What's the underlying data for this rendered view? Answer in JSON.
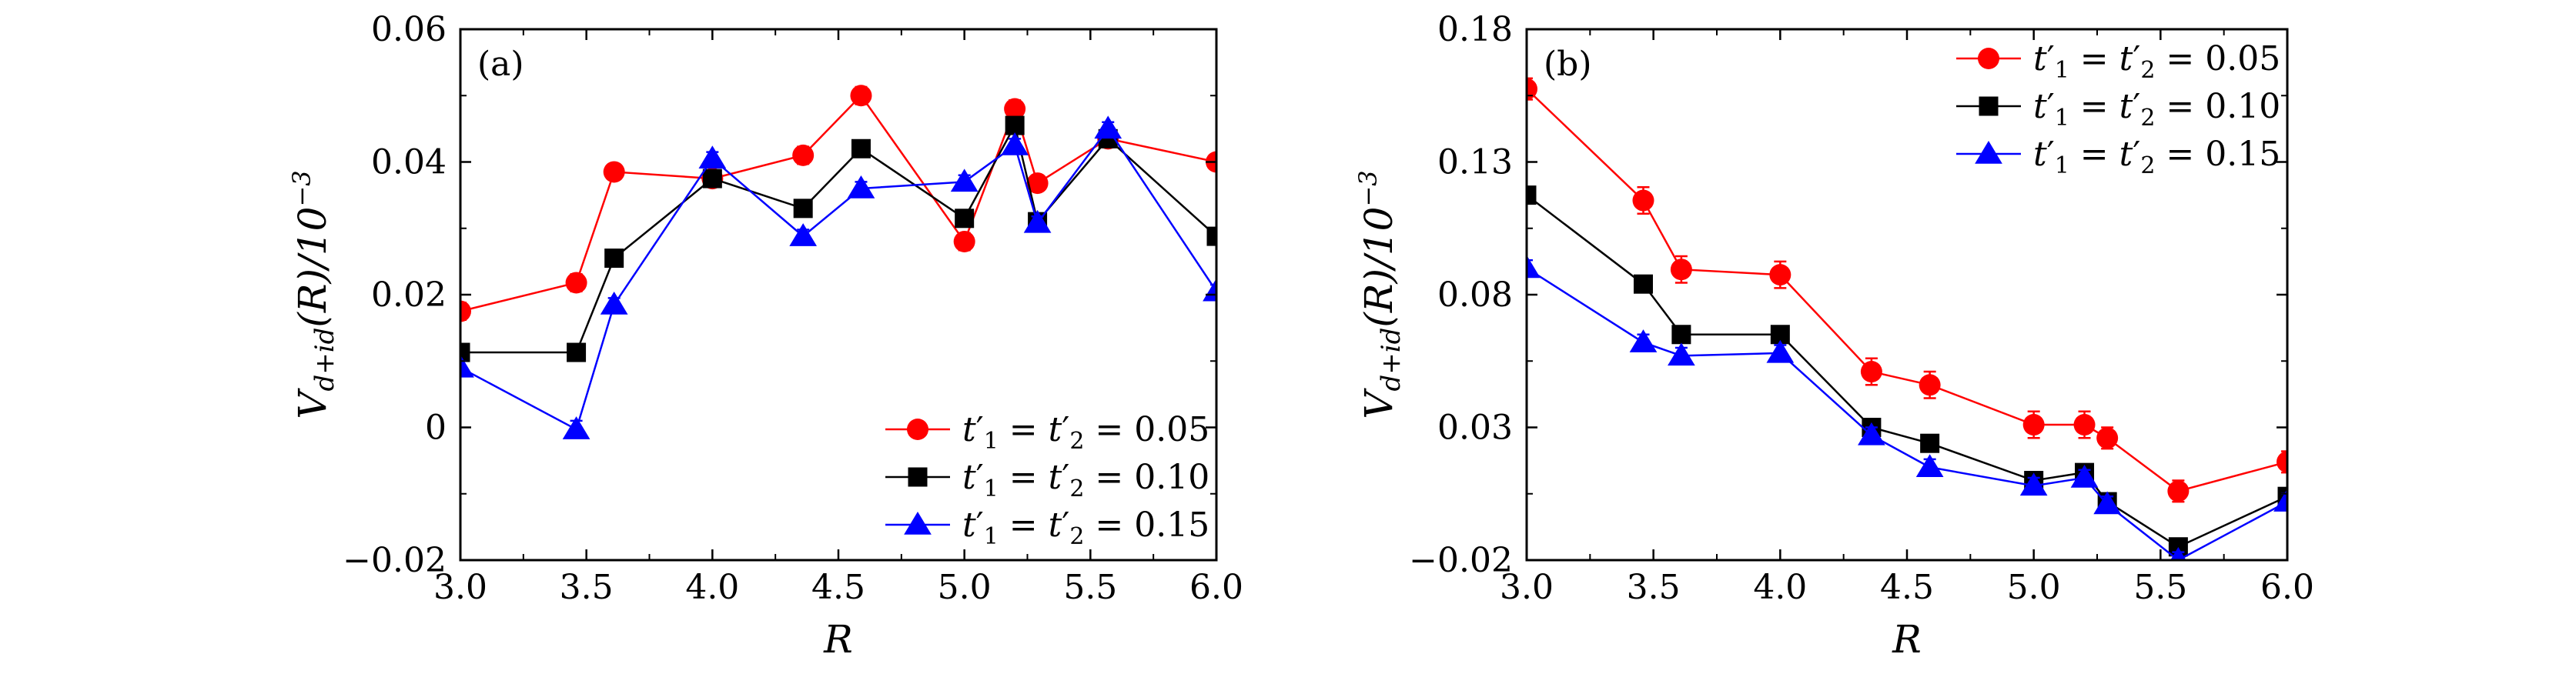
{
  "chart_data": [
    {
      "type": "line",
      "panel_label": "(a)",
      "xlabel": "R",
      "ylabel": "V_{d+id}(R)/10^{-3}",
      "ylabel_main": "V",
      "ylabel_sub": "d+id",
      "ylabel_mid": "(R)/10",
      "ylabel_sup": "−3",
      "xlim": [
        3.0,
        6.0
      ],
      "ylim": [
        -0.02,
        0.06
      ],
      "xticks": [
        3.0,
        3.5,
        4.0,
        4.5,
        5.0,
        5.5,
        6.0
      ],
      "xtick_labels": [
        "3.0",
        "3.5",
        "4.0",
        "4.5",
        "5.0",
        "5.5",
        "6.0"
      ],
      "yticks": [
        -0.02,
        0,
        0.02,
        0.04,
        0.06
      ],
      "ytick_labels": [
        "−0.02",
        "0",
        "0.02",
        "0.04",
        "0.06"
      ],
      "legend_position": "bottom-right",
      "x": [
        3.0,
        3.46,
        3.61,
        4.0,
        4.36,
        4.59,
        5.0,
        5.2,
        5.29,
        5.57,
        6.0
      ],
      "series": [
        {
          "name": "t'1 = t'2 = 0.05",
          "legend_lhs": "t",
          "legend_value": "0.05",
          "color": "#ff0000",
          "marker": "circle",
          "values": [
            0.0175,
            0.0218,
            0.0385,
            0.0375,
            0.041,
            0.05,
            0.028,
            0.048,
            0.0368,
            0.0435,
            0.04
          ],
          "errors": [
            0.0013,
            0.0013,
            0.001,
            0.001,
            0.0013,
            0.0013,
            0.0013,
            0.0013,
            0.001,
            0.0013,
            0.001
          ]
        },
        {
          "name": "t'1 = t'2 = 0.10",
          "legend_lhs": "t",
          "legend_value": "0.10",
          "color": "#000000",
          "marker": "square",
          "values": [
            0.0113,
            0.0113,
            0.0255,
            0.0375,
            0.033,
            0.042,
            0.0315,
            0.0455,
            0.031,
            0.0435,
            0.0288
          ],
          "errors": [
            0.001,
            0.001,
            0.001,
            0.001,
            0.001,
            0.001,
            0.001,
            0.001,
            0.001,
            0.001,
            0.001
          ]
        },
        {
          "name": "t'1 = t'2 = 0.15",
          "legend_lhs": "t",
          "legend_value": "0.15",
          "color": "#0000ff",
          "marker": "triangle",
          "values": [
            0.009,
            -0.0003,
            0.0185,
            0.0405,
            0.0288,
            0.036,
            0.037,
            0.0425,
            0.0308,
            0.045,
            0.0205
          ],
          "errors": [
            0.001,
            0.0013,
            0.001,
            0.001,
            0.001,
            0.001,
            0.001,
            0.001,
            0.001,
            0.001,
            0.001
          ]
        }
      ]
    },
    {
      "type": "line",
      "panel_label": "(b)",
      "xlabel": "R",
      "ylabel": "V_{d+id}(R)/10^{-3}",
      "ylabel_main": "V",
      "ylabel_sub": "d+id",
      "ylabel_mid": "(R)/10",
      "ylabel_sup": "−3",
      "xlim": [
        3.0,
        6.0
      ],
      "ylim": [
        -0.02,
        0.18
      ],
      "xticks": [
        3.0,
        3.5,
        4.0,
        4.5,
        5.0,
        5.5,
        6.0
      ],
      "xtick_labels": [
        "3.0",
        "3.5",
        "4.0",
        "4.5",
        "5.0",
        "5.5",
        "6.0"
      ],
      "yticks": [
        -0.02,
        0.03,
        0.08,
        0.13,
        0.18
      ],
      "ytick_labels": [
        "−0.02",
        "0.03",
        "0.08",
        "0.13",
        "0.18"
      ],
      "legend_position": "top-right",
      "x": [
        3.0,
        3.46,
        3.61,
        4.0,
        4.36,
        4.59,
        5.0,
        5.2,
        5.29,
        5.57,
        6.0
      ],
      "series": [
        {
          "name": "t'1 = t'2 = 0.05",
          "legend_lhs": "t",
          "legend_value": "0.05",
          "color": "#ff0000",
          "marker": "circle",
          "values": [
            0.1575,
            0.1155,
            0.0895,
            0.0875,
            0.051,
            0.046,
            0.031,
            0.031,
            0.026,
            0.006,
            0.017
          ],
          "errors": [
            0.004,
            0.005,
            0.005,
            0.005,
            0.005,
            0.005,
            0.005,
            0.005,
            0.004,
            0.004,
            0.004
          ]
        },
        {
          "name": "t'1 = t'2 = 0.10",
          "legend_lhs": "t",
          "legend_value": "0.10",
          "color": "#000000",
          "marker": "square",
          "values": [
            0.1175,
            0.084,
            0.065,
            0.065,
            0.03,
            0.024,
            0.01,
            0.013,
            0.002,
            -0.015,
            0.004
          ],
          "errors": [
            0.003,
            0.003,
            0.003,
            0.003,
            0.003,
            0.003,
            0.003,
            0.003,
            0.003,
            0.003,
            0.003
          ]
        },
        {
          "name": "t'1 = t'2 = 0.15",
          "legend_lhs": "t",
          "legend_value": "0.15",
          "color": "#0000ff",
          "marker": "triangle",
          "values": [
            0.09,
            0.062,
            0.057,
            0.058,
            0.027,
            0.015,
            0.008,
            0.011,
            0.001,
            -0.02,
            0.002
          ],
          "errors": [
            0.003,
            0.003,
            0.003,
            0.003,
            0.003,
            0.003,
            0.003,
            0.003,
            0.003,
            0.003,
            0.003
          ]
        }
      ]
    }
  ]
}
